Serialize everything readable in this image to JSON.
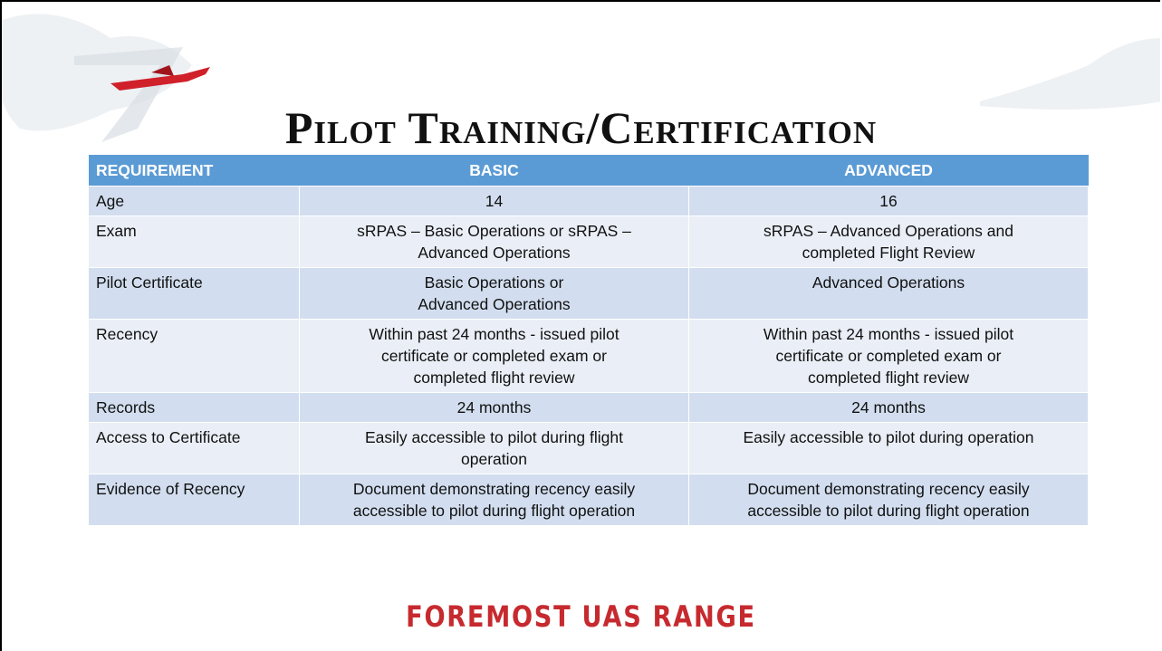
{
  "title": "Pilot Training/Certification",
  "table": {
    "header": [
      "REQUIREMENT",
      "BASIC",
      "ADVANCED"
    ],
    "rows": [
      [
        [
          "Age"
        ],
        [
          "14"
        ],
        [
          "16"
        ]
      ],
      [
        [
          "Exam"
        ],
        [
          "sRPAS – Basic Operations or sRPAS –",
          "Advanced Operations"
        ],
        [
          "sRPAS – Advanced Operations and",
          "completed Flight Review"
        ]
      ],
      [
        [
          "Pilot Certificate"
        ],
        [
          "Basic Operations or",
          "Advanced Operations"
        ],
        [
          "Advanced Operations"
        ]
      ],
      [
        [
          "Recency"
        ],
        [
          "Within past 24 months -  issued pilot",
          "certificate or completed exam or",
          "completed flight review"
        ],
        [
          "Within past 24 months -  issued pilot",
          "certificate or completed exam or",
          "completed flight review"
        ]
      ],
      [
        [
          "Records"
        ],
        [
          "24 months"
        ],
        [
          "24 months"
        ]
      ],
      [
        [
          "Access to Certificate"
        ],
        [
          "Easily accessible to pilot during flight",
          "operation"
        ],
        [
          "Easily accessible to pilot during operation"
        ]
      ],
      [
        [
          "Evidence of Recency"
        ],
        [
          "Document demonstrating recency easily",
          "accessible to pilot during flight operation"
        ],
        [
          "Document demonstrating recency easily",
          "accessible to pilot during flight operation"
        ]
      ]
    ]
  },
  "footer": "FOREMOST UAS RANGE"
}
